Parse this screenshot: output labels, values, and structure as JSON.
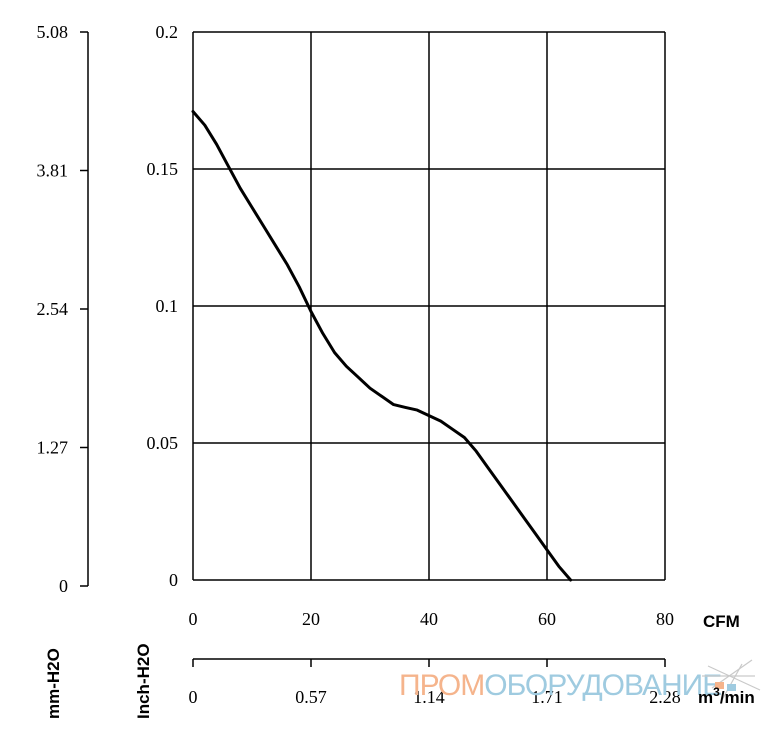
{
  "chart_data": {
    "type": "line",
    "x": [
      0,
      2,
      4,
      6,
      8,
      10,
      12,
      14,
      16,
      18,
      20,
      22,
      24,
      26,
      28,
      30,
      32,
      34,
      36,
      38,
      40,
      42,
      44,
      46,
      48,
      50,
      52,
      54,
      56,
      58,
      60,
      62,
      64
    ],
    "series": [
      {
        "values": [
          0.171,
          0.166,
          0.159,
          0.151,
          0.143,
          0.136,
          0.129,
          0.122,
          0.115,
          0.107,
          0.098,
          0.09,
          0.083,
          0.078,
          0.074,
          0.07,
          0.067,
          0.064,
          0.063,
          0.062,
          0.06,
          0.058,
          0.055,
          0.052,
          0.047,
          0.041,
          0.035,
          0.029,
          0.023,
          0.017,
          0.011,
          0.005,
          0.0
        ]
      }
    ],
    "x_axis": {
      "unit_label": "CFM",
      "range": [
        0,
        80
      ],
      "ticks": [
        "0",
        "20",
        "40",
        "60",
        "80"
      ]
    },
    "x_axis_secondary": {
      "unit_label_base": "m",
      "unit_label_sup": "3",
      "unit_label_tail": "/min",
      "range": [
        0,
        2.28
      ],
      "ticks": [
        "0",
        "0.57",
        "1.14",
        "1.71",
        "2.28"
      ]
    },
    "y_axis": {
      "unit_label": "Inch-H2O",
      "range": [
        0,
        0.2
      ],
      "ticks": [
        "0",
        "0.05",
        "0.1",
        "0.15",
        "0.2"
      ]
    },
    "y_axis_secondary": {
      "unit_label": "mm-H2O",
      "range": [
        0,
        5.08
      ],
      "ticks": [
        "0",
        "1.27",
        "2.54",
        "3.81",
        "5.08"
      ]
    },
    "grid": true
  },
  "watermark": {
    "part1": "ПРОМ",
    "part2": "ОБОРУДОВАНИЕ",
    "color1": "#f5b48c",
    "color2": "#9fcbe0"
  },
  "colors": {
    "line": "#000000",
    "grid": "#000000"
  }
}
